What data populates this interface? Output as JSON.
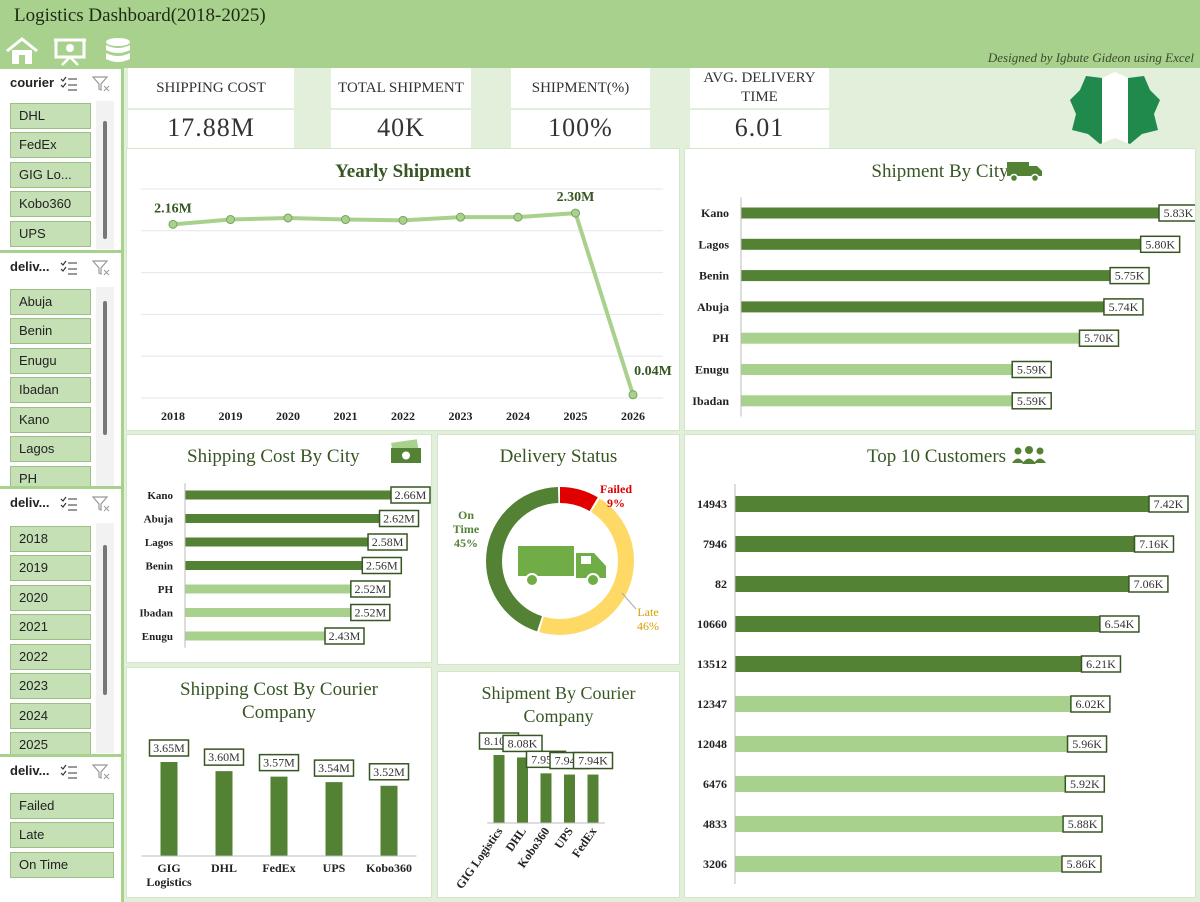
{
  "header": {
    "title": "Logistics Dashboard(2018-2025)",
    "credit": "Designed by Igbute Gideon using Excel",
    "icons": [
      "home-icon",
      "presentation-icon",
      "database-icon"
    ]
  },
  "kpis": [
    {
      "label": "SHIPPING COST",
      "value": "17.88M"
    },
    {
      "label": "TOTAL SHIPMENT",
      "value": "40K"
    },
    {
      "label": "SHIPMENT(%)",
      "value": "100%"
    },
    {
      "label": "AVG. DELIVERY TIME",
      "value": "6.01"
    }
  ],
  "slicers": [
    {
      "title": "courier",
      "items": [
        "DHL",
        "FedEx",
        "GIG Lo...",
        "Kobo360",
        "UPS"
      ]
    },
    {
      "title": "deliv...",
      "items": [
        "Abuja",
        "Benin",
        "Enugu",
        "Ibadan",
        "Kano",
        "Lagos",
        "PH"
      ]
    },
    {
      "title": "deliv...",
      "items": [
        "2018",
        "2019",
        "2020",
        "2021",
        "2022",
        "2023",
        "2024",
        "2025"
      ]
    },
    {
      "title": "deliv...",
      "items": [
        "Failed",
        "Late",
        "On Time"
      ]
    }
  ],
  "colors": {
    "header": "#a9d18e",
    "dark_green": "#548235",
    "light_green": "#a9d18e",
    "failed": "#e00000",
    "late": "#ffd966",
    "on_time": "#548235"
  },
  "charts": {
    "yearly_shipment": {
      "title": "Yearly Shipment",
      "point_labels": {
        "first": "2.16M",
        "peak": "2.30M",
        "last": "0.04M"
      }
    },
    "shipment_by_city": {
      "title": "Shipment By City"
    },
    "shipping_cost_by_city": {
      "title": "Shipping Cost By City"
    },
    "delivery_status": {
      "title": "Delivery Status",
      "labels": {
        "failed_name": "Failed",
        "failed_pct": "9%",
        "on_time_name": "On",
        "on_time_name2": "Time",
        "on_time_pct": "45%",
        "late_name": "Late",
        "late_pct": "46%"
      }
    },
    "top_customers": {
      "title": "Top 10 Customers"
    },
    "shipping_cost_by_courier": {
      "title": "Shipping Cost By Courier Company"
    },
    "shipment_by_courier": {
      "title": "Shipment By Courier Company"
    }
  },
  "chart_data": [
    {
      "type": "line",
      "title": "Yearly Shipment",
      "x": [
        "2018",
        "2019",
        "2020",
        "2021",
        "2022",
        "2023",
        "2024",
        "2025",
        "2026"
      ],
      "values": [
        2.16,
        2.22,
        2.24,
        2.22,
        2.21,
        2.25,
        2.25,
        2.3,
        0.04
      ],
      "data_labels": [
        "2.16M",
        "",
        "",
        "",
        "",
        "",
        "",
        "2.30M",
        "0.04M"
      ],
      "ylim": [
        0,
        2.6
      ],
      "grid": true
    },
    {
      "type": "bar",
      "orientation": "horizontal",
      "title": "Shipment By City",
      "categories": [
        "Kano",
        "Lagos",
        "Benin",
        "Abuja",
        "PH",
        "Enugu",
        "Ibadan"
      ],
      "values": [
        5.83,
        5.8,
        5.75,
        5.74,
        5.7,
        5.59,
        5.59
      ],
      "data_labels": [
        "5.83K",
        "5.80K",
        "5.75K",
        "5.74K",
        "5.70K",
        "5.59K",
        "5.59K"
      ],
      "highlight": [
        true,
        true,
        true,
        true,
        false,
        false,
        false
      ],
      "xlim": [
        5.4,
        5.83
      ]
    },
    {
      "type": "bar",
      "orientation": "horizontal",
      "title": "Shipping Cost By City",
      "categories": [
        "Kano",
        "Abuja",
        "Lagos",
        "Benin",
        "PH",
        "Ibadan",
        "Enugu"
      ],
      "values": [
        2.66,
        2.62,
        2.58,
        2.56,
        2.52,
        2.52,
        2.43
      ],
      "data_labels": [
        "2.66M",
        "2.62M",
        "2.58M",
        "2.56M",
        "2.52M",
        "2.52M",
        "2.43M"
      ],
      "highlight": [
        true,
        true,
        true,
        true,
        false,
        false,
        false
      ],
      "xlim": [
        2.2,
        2.66
      ]
    },
    {
      "type": "pie",
      "title": "Delivery Status",
      "categories": [
        "Failed",
        "Late",
        "On Time"
      ],
      "values": [
        9,
        46,
        45
      ]
    },
    {
      "type": "bar",
      "orientation": "horizontal",
      "title": "Top 10 Customers",
      "categories": [
        "14943",
        "7946",
        "82",
        "10660",
        "13512",
        "12347",
        "12048",
        "6476",
        "4833",
        "3206"
      ],
      "values": [
        7.42,
        7.16,
        7.06,
        6.54,
        6.21,
        6.02,
        5.96,
        5.92,
        5.88,
        5.86
      ],
      "data_labels": [
        "7.42K",
        "7.16K",
        "7.06K",
        "6.54K",
        "6.21K",
        "6.02K",
        "5.96K",
        "5.92K",
        "5.88K",
        "5.86K"
      ],
      "highlight": [
        true,
        true,
        true,
        true,
        true,
        false,
        false,
        false,
        false,
        false
      ],
      "xlim": [
        0,
        7.42
      ]
    },
    {
      "type": "bar",
      "title": "Shipping Cost By Courier Company",
      "categories": [
        "GIG Logistics",
        "DHL",
        "FedEx",
        "UPS",
        "Kobo360"
      ],
      "values": [
        3.65,
        3.6,
        3.57,
        3.54,
        3.52
      ],
      "data_labels": [
        "3.65M",
        "3.60M",
        "3.57M",
        "3.54M",
        "3.52M"
      ],
      "ylim": [
        3.3,
        3.65
      ]
    },
    {
      "type": "bar",
      "title": "Shipment By Courier Company",
      "categories": [
        "GIG Logistics",
        "DHL",
        "Kobo360",
        "UPS",
        "FedEx"
      ],
      "values": [
        8.1,
        8.08,
        7.95,
        7.94,
        7.94
      ],
      "data_labels": [
        "8.10K",
        "8.08K",
        "7.95K",
        "7.94K",
        "7.94K"
      ],
      "ylim": [
        7.74,
        8.1
      ]
    }
  ]
}
